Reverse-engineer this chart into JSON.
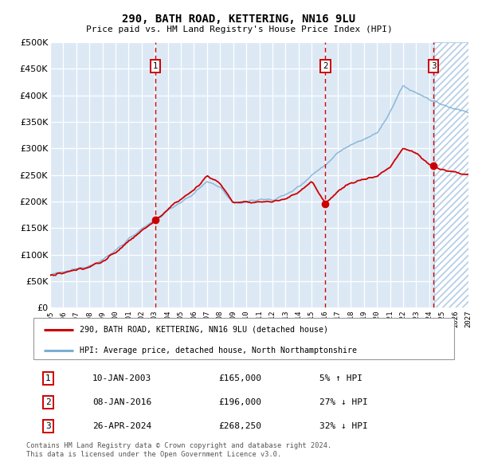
{
  "title": "290, BATH ROAD, KETTERING, NN16 9LU",
  "subtitle": "Price paid vs. HM Land Registry's House Price Index (HPI)",
  "legend_line1": "290, BATH ROAD, KETTERING, NN16 9LU (detached house)",
  "legend_line2": "HPI: Average price, detached house, North Northamptonshire",
  "transactions": [
    {
      "num": 1,
      "date": "10-JAN-2003",
      "price": 165000,
      "hpi_diff": "5% ↑ HPI",
      "year": 2003.05
    },
    {
      "num": 2,
      "date": "08-JAN-2016",
      "price": 196000,
      "hpi_diff": "27% ↓ HPI",
      "year": 2016.05
    },
    {
      "num": 3,
      "date": "26-APR-2024",
      "price": 268250,
      "hpi_diff": "32% ↓ HPI",
      "year": 2024.32
    }
  ],
  "footnote1": "Contains HM Land Registry data © Crown copyright and database right 2024.",
  "footnote2": "This data is licensed under the Open Government Licence v3.0.",
  "xmin": 1995,
  "xmax": 2027,
  "ymin": 0,
  "ymax": 500000,
  "bg_color": "#dce9f5",
  "red_line_color": "#cc0000",
  "blue_line_color": "#7bafd4",
  "dashed_vline_color": "#cc0000",
  "grid_color": "#ffffff",
  "transaction_box_color": "#cc0000",
  "hpi_control_years": [
    1995,
    1996,
    1997,
    1998,
    1999,
    2000,
    2001,
    2002,
    2003,
    2004,
    2005,
    2006,
    2007,
    2008,
    2009,
    2010,
    2011,
    2012,
    2013,
    2014,
    2015,
    2016,
    2017,
    2018,
    2019,
    2020,
    2021,
    2022,
    2023,
    2024,
    2024.5,
    2025,
    2026,
    2027
  ],
  "hpi_control_values": [
    62000,
    67000,
    73000,
    80000,
    90000,
    108000,
    130000,
    148000,
    163000,
    183000,
    200000,
    215000,
    238000,
    228000,
    196000,
    200000,
    204000,
    204000,
    212000,
    228000,
    250000,
    268000,
    292000,
    308000,
    318000,
    328000,
    368000,
    418000,
    405000,
    392000,
    388000,
    382000,
    375000,
    368000
  ],
  "red_control_years": [
    1995,
    1996,
    1997,
    1998,
    1999,
    2000,
    2001,
    2002,
    2003.05,
    2004,
    2005,
    2006,
    2007,
    2008,
    2009,
    2010,
    2011,
    2012,
    2013,
    2014,
    2015,
    2016.05,
    2017,
    2018,
    2019,
    2020,
    2021,
    2022,
    2023,
    2023.5,
    2024.0,
    2024.32,
    2024.6,
    2025,
    2026,
    2027
  ],
  "red_control_values": [
    60000,
    65000,
    71000,
    78000,
    87000,
    104000,
    126000,
    145000,
    165000,
    185000,
    205000,
    222000,
    248000,
    235000,
    198000,
    198000,
    200000,
    200000,
    205000,
    218000,
    238000,
    196000,
    220000,
    235000,
    242000,
    248000,
    265000,
    300000,
    292000,
    280000,
    270000,
    268250,
    264000,
    260000,
    255000,
    250000
  ]
}
